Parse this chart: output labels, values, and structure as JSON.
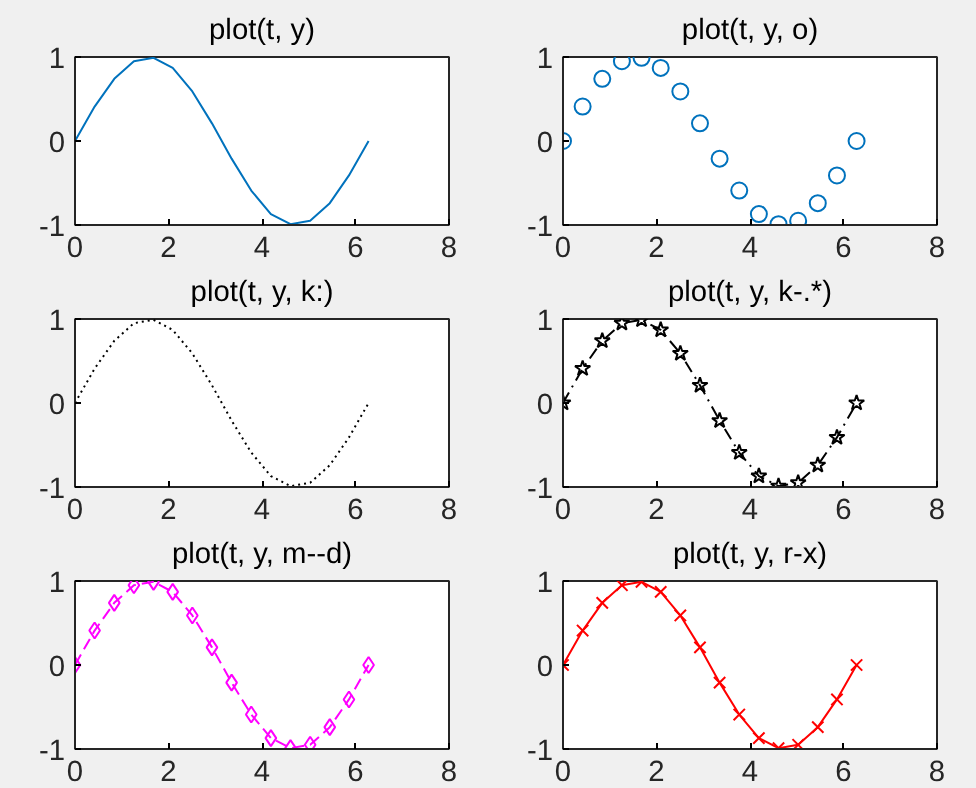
{
  "chart_data": [
    {
      "type": "line",
      "title": "plot(t, y)",
      "x": [
        0,
        0.42,
        0.84,
        1.26,
        1.68,
        2.09,
        2.51,
        2.93,
        3.35,
        3.77,
        4.19,
        4.61,
        5.03,
        5.45,
        5.86,
        6.28
      ],
      "values": [
        0,
        0.41,
        0.74,
        0.95,
        0.99,
        0.87,
        0.59,
        0.21,
        -0.21,
        -0.59,
        -0.87,
        -0.99,
        -0.95,
        -0.74,
        -0.41,
        0
      ],
      "color": "#0072bd",
      "marker": "none",
      "line_style": "solid",
      "xlim": [
        0,
        8
      ],
      "xticks": [
        0,
        2,
        4,
        6,
        8
      ],
      "ylim": [
        -1,
        1
      ],
      "yticks": [
        -1,
        0,
        1
      ]
    },
    {
      "type": "scatter",
      "title": "plot(t, y, o)",
      "x": [
        0,
        0.42,
        0.84,
        1.26,
        1.68,
        2.09,
        2.51,
        2.93,
        3.35,
        3.77,
        4.19,
        4.61,
        5.03,
        5.45,
        5.86,
        6.28
      ],
      "values": [
        0,
        0.41,
        0.74,
        0.95,
        0.99,
        0.87,
        0.59,
        0.21,
        -0.21,
        -0.59,
        -0.87,
        -0.99,
        -0.95,
        -0.74,
        -0.41,
        0
      ],
      "color": "#0072bd",
      "marker": "circle",
      "xlim": [
        0,
        8
      ],
      "xticks": [
        0,
        2,
        4,
        6,
        8
      ],
      "ylim": [
        -1,
        1
      ],
      "yticks": [
        -1,
        0,
        1
      ]
    },
    {
      "type": "line",
      "title": "plot(t, y, k:)",
      "x": [
        0,
        0.42,
        0.84,
        1.26,
        1.68,
        2.09,
        2.51,
        2.93,
        3.35,
        3.77,
        4.19,
        4.61,
        5.03,
        5.45,
        5.86,
        6.28
      ],
      "values": [
        0,
        0.41,
        0.74,
        0.95,
        0.99,
        0.87,
        0.59,
        0.21,
        -0.21,
        -0.59,
        -0.87,
        -0.99,
        -0.95,
        -0.74,
        -0.41,
        0
      ],
      "color": "#000000",
      "marker": "none",
      "line_style": "dotted",
      "xlim": [
        0,
        8
      ],
      "xticks": [
        0,
        2,
        4,
        6,
        8
      ],
      "ylim": [
        -1,
        1
      ],
      "yticks": [
        -1,
        0,
        1
      ]
    },
    {
      "type": "line",
      "title": "plot(t, y, k-.*)",
      "x": [
        0,
        0.42,
        0.84,
        1.26,
        1.68,
        2.09,
        2.51,
        2.93,
        3.35,
        3.77,
        4.19,
        4.61,
        5.03,
        5.45,
        5.86,
        6.28
      ],
      "values": [
        0,
        0.41,
        0.74,
        0.95,
        0.99,
        0.87,
        0.59,
        0.21,
        -0.21,
        -0.59,
        -0.87,
        -0.99,
        -0.95,
        -0.74,
        -0.41,
        0
      ],
      "color": "#000000",
      "marker": "star",
      "line_style": "dashdot",
      "xlim": [
        0,
        8
      ],
      "xticks": [
        0,
        2,
        4,
        6,
        8
      ],
      "ylim": [
        -1,
        1
      ],
      "yticks": [
        -1,
        0,
        1
      ]
    },
    {
      "type": "line",
      "title": "plot(t, y, m--d)",
      "x": [
        0,
        0.42,
        0.84,
        1.26,
        1.68,
        2.09,
        2.51,
        2.93,
        3.35,
        3.77,
        4.19,
        4.61,
        5.03,
        5.45,
        5.86,
        6.28
      ],
      "values": [
        0,
        0.41,
        0.74,
        0.95,
        0.99,
        0.87,
        0.59,
        0.21,
        -0.21,
        -0.59,
        -0.87,
        -0.99,
        -0.95,
        -0.74,
        -0.41,
        0
      ],
      "color": "#ff00ff",
      "marker": "diamond",
      "line_style": "dashed",
      "xlim": [
        0,
        8
      ],
      "xticks": [
        0,
        2,
        4,
        6,
        8
      ],
      "ylim": [
        -1,
        1
      ],
      "yticks": [
        -1,
        0,
        1
      ]
    },
    {
      "type": "line",
      "title": "plot(t, y, r-x)",
      "x": [
        0,
        0.42,
        0.84,
        1.26,
        1.68,
        2.09,
        2.51,
        2.93,
        3.35,
        3.77,
        4.19,
        4.61,
        5.03,
        5.45,
        5.86,
        6.28
      ],
      "values": [
        0,
        0.41,
        0.74,
        0.95,
        0.99,
        0.87,
        0.59,
        0.21,
        -0.21,
        -0.59,
        -0.87,
        -0.99,
        -0.95,
        -0.74,
        -0.41,
        0
      ],
      "color": "#ff0000",
      "marker": "cross",
      "line_style": "solid",
      "xlim": [
        0,
        8
      ],
      "xticks": [
        0,
        2,
        4,
        6,
        8
      ],
      "ylim": [
        -1,
        1
      ],
      "yticks": [
        -1,
        0,
        1
      ]
    }
  ]
}
